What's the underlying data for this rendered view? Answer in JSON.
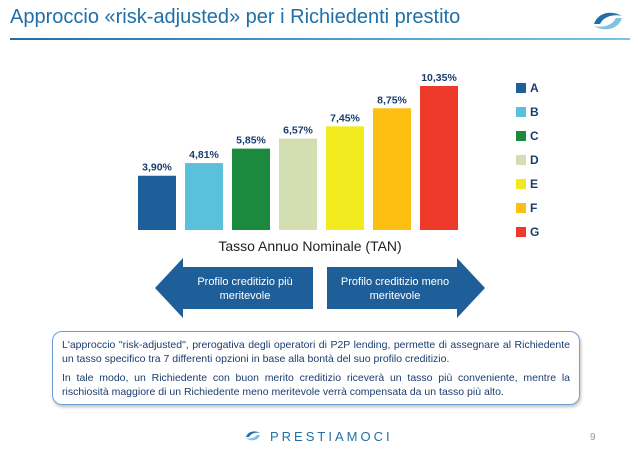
{
  "header": {
    "title": "Approccio «risk-adjusted» per i Richiedenti prestito"
  },
  "chart_data": {
    "type": "bar",
    "categories": [
      "A",
      "B",
      "C",
      "D",
      "E",
      "F",
      "G"
    ],
    "values": [
      3.9,
      4.81,
      5.85,
      6.57,
      7.45,
      8.75,
      10.35
    ],
    "value_labels": [
      "3,90%",
      "4,81%",
      "5,85%",
      "6,57%",
      "7,45%",
      "8,75%",
      "10,35%"
    ],
    "colors": [
      "#1f5f99",
      "#5bc0dc",
      "#1b8a3e",
      "#d3dfb0",
      "#f1ea1f",
      "#fdbf11",
      "#ee3a2b"
    ],
    "title": "",
    "xlabel": "Tasso Annuo Nominale (TAN)",
    "ylabel": "",
    "ylim": [
      0,
      10.35
    ],
    "legend": "right",
    "grid": false
  },
  "arrows": {
    "left_label": "Profilo creditizio più meritevole",
    "right_label": "Profilo creditizio meno meritevole",
    "color": "#1f5f99"
  },
  "info": {
    "paragraph1": "L'approccio \"risk-adjusted\", prerogativa degli operatori di P2P lending, permette di assegnare al Richiedente un tasso specifico tra 7 differenti opzioni in base alla bontà del suo profilo creditizio.",
    "paragraph2": "In tale modo, un Richiedente con buon merito creditizio riceverà un tasso più conveniente, mentre la rischiosità maggiore di un Richiedente meno meritevole verrà compensata da un tasso più alto."
  },
  "footer": {
    "brand": "PRESTIAMOCI",
    "page_number": "9"
  }
}
